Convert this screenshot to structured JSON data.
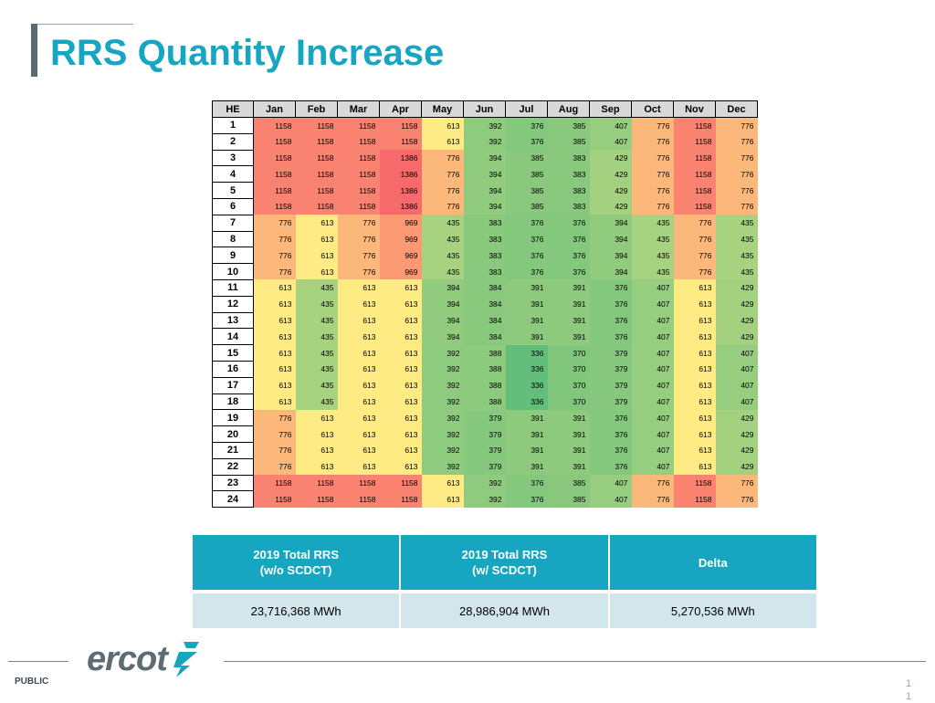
{
  "title": "RRS Quantity Increase",
  "heat_table": {
    "he_header": "HE",
    "months": [
      "Jan",
      "Feb",
      "Mar",
      "Apr",
      "May",
      "Jun",
      "Jul",
      "Aug",
      "Sep",
      "Oct",
      "Nov",
      "Dec"
    ],
    "rows": [
      {
        "he": "1",
        "values": [
          1158,
          1158,
          1158,
          1158,
          613,
          392,
          376,
          385,
          407,
          776,
          1158,
          776
        ]
      },
      {
        "he": "2",
        "values": [
          1158,
          1158,
          1158,
          1158,
          613,
          392,
          376,
          385,
          407,
          776,
          1158,
          776
        ]
      },
      {
        "he": "3",
        "values": [
          1158,
          1158,
          1158,
          1386,
          776,
          394,
          385,
          383,
          429,
          776,
          1158,
          776
        ]
      },
      {
        "he": "4",
        "values": [
          1158,
          1158,
          1158,
          1386,
          776,
          394,
          385,
          383,
          429,
          776,
          1158,
          776
        ]
      },
      {
        "he": "5",
        "values": [
          1158,
          1158,
          1158,
          1386,
          776,
          394,
          385,
          383,
          429,
          776,
          1158,
          776
        ]
      },
      {
        "he": "6",
        "values": [
          1158,
          1158,
          1158,
          1386,
          776,
          394,
          385,
          383,
          429,
          776,
          1158,
          776
        ]
      },
      {
        "he": "7",
        "values": [
          776,
          613,
          776,
          969,
          435,
          383,
          376,
          376,
          394,
          435,
          776,
          435
        ]
      },
      {
        "he": "8",
        "values": [
          776,
          613,
          776,
          969,
          435,
          383,
          376,
          376,
          394,
          435,
          776,
          435
        ]
      },
      {
        "he": "9",
        "values": [
          776,
          613,
          776,
          969,
          435,
          383,
          376,
          376,
          394,
          435,
          776,
          435
        ]
      },
      {
        "he": "10",
        "values": [
          776,
          613,
          776,
          969,
          435,
          383,
          376,
          376,
          394,
          435,
          776,
          435
        ]
      },
      {
        "he": "11",
        "values": [
          613,
          435,
          613,
          613,
          394,
          384,
          391,
          391,
          376,
          407,
          613,
          429
        ]
      },
      {
        "he": "12",
        "values": [
          613,
          435,
          613,
          613,
          394,
          384,
          391,
          391,
          376,
          407,
          613,
          429
        ]
      },
      {
        "he": "13",
        "values": [
          613,
          435,
          613,
          613,
          394,
          384,
          391,
          391,
          376,
          407,
          613,
          429
        ]
      },
      {
        "he": "14",
        "values": [
          613,
          435,
          613,
          613,
          394,
          384,
          391,
          391,
          376,
          407,
          613,
          429
        ]
      },
      {
        "he": "15",
        "values": [
          613,
          435,
          613,
          613,
          392,
          388,
          336,
          370,
          379,
          407,
          613,
          407
        ]
      },
      {
        "he": "16",
        "values": [
          613,
          435,
          613,
          613,
          392,
          388,
          336,
          370,
          379,
          407,
          613,
          407
        ]
      },
      {
        "he": "17",
        "values": [
          613,
          435,
          613,
          613,
          392,
          388,
          336,
          370,
          379,
          407,
          613,
          407
        ]
      },
      {
        "he": "18",
        "values": [
          613,
          435,
          613,
          613,
          392,
          388,
          336,
          370,
          379,
          407,
          613,
          407
        ]
      },
      {
        "he": "19",
        "values": [
          776,
          613,
          613,
          613,
          392,
          379,
          391,
          391,
          376,
          407,
          613,
          429
        ]
      },
      {
        "he": "20",
        "values": [
          776,
          613,
          613,
          613,
          392,
          379,
          391,
          391,
          376,
          407,
          613,
          429
        ]
      },
      {
        "he": "21",
        "values": [
          776,
          613,
          613,
          613,
          392,
          379,
          391,
          391,
          376,
          407,
          613,
          429
        ]
      },
      {
        "he": "22",
        "values": [
          776,
          613,
          613,
          613,
          392,
          379,
          391,
          391,
          376,
          407,
          613,
          429
        ]
      },
      {
        "he": "23",
        "values": [
          1158,
          1158,
          1158,
          1158,
          613,
          392,
          376,
          385,
          407,
          776,
          1158,
          776
        ]
      },
      {
        "he": "24",
        "values": [
          1158,
          1158,
          1158,
          1158,
          613,
          392,
          376,
          385,
          407,
          776,
          1158,
          776
        ]
      }
    ]
  },
  "summary": {
    "headers": [
      {
        "line1": "2019 Total RRS",
        "line2": "(w/o SCDCT)"
      },
      {
        "line1": "2019 Total RRS",
        "line2": "(w/ SCDCT)"
      },
      {
        "line1": "Delta",
        "line2": ""
      }
    ],
    "values": [
      "23,716,368 MWh",
      "28,986,904 MWh",
      "5,270,536 MWh"
    ]
  },
  "footer": {
    "logo_text": "ercot",
    "classification": "PUBLIC",
    "page_number": "11"
  },
  "colors": {
    "title": "#17a6c1",
    "summary_header": "#17a6c1",
    "summary_row": "#d3e6ec",
    "heat_low": "#63be7b",
    "heat_mid": "#ffeb84",
    "heat_high": "#f8696b"
  }
}
